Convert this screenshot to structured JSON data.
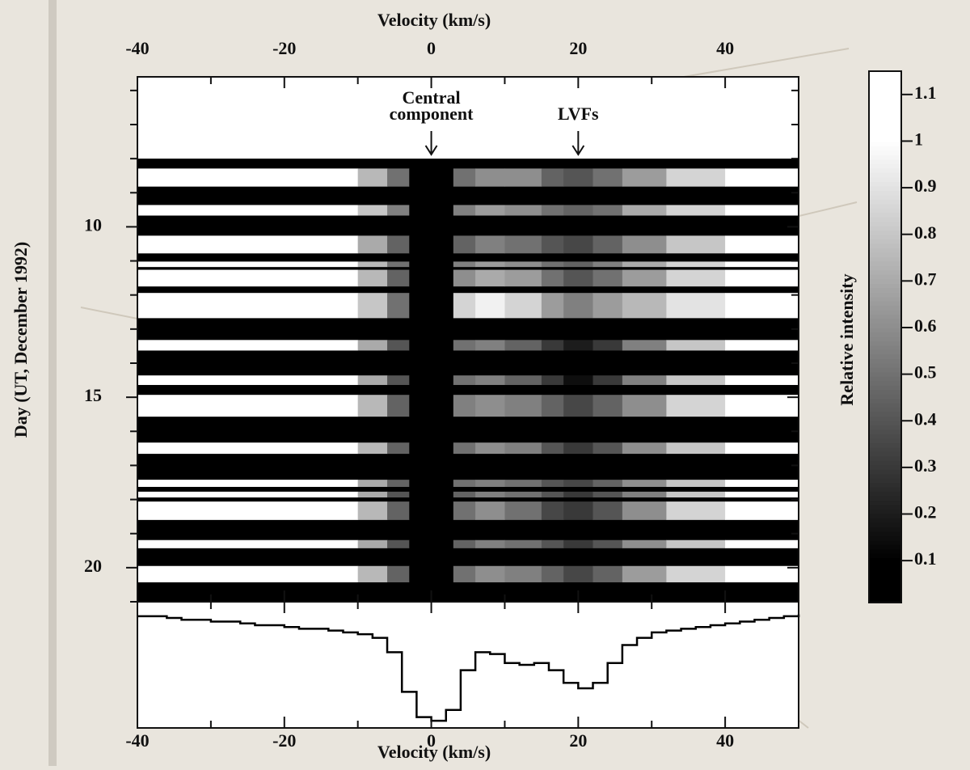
{
  "chart_data": {
    "type": "dynamic-spectrum",
    "xlabel_top": "Velocity (km/s)",
    "xlabel_bottom": "Velocity (km/s)",
    "ylabel": "Day (UT, December 1992)",
    "colorbar_label": "Relative intensity",
    "xlim": [
      -40,
      50
    ],
    "xticks": [
      -40,
      -20,
      0,
      20,
      40
    ],
    "xminorticks": [
      -30,
      -10,
      10,
      30
    ],
    "ylim": [
      5.6,
      21.0
    ],
    "yticks": [
      10,
      15,
      20
    ],
    "yminorticks": [
      6,
      7,
      8,
      9,
      11,
      12,
      13,
      14,
      16,
      17,
      18,
      19,
      21
    ],
    "observed_days": [
      8.0,
      21.0
    ],
    "clim": [
      0.1,
      1.0
    ],
    "cbar_lim": [
      0.01,
      1.15
    ],
    "cbar_ticks": [
      0.1,
      0.2,
      0.3,
      0.4,
      0.5,
      0.6,
      0.7,
      0.8,
      0.9,
      1,
      1.1
    ],
    "annotations": [
      {
        "lines": [
          "Central",
          "component"
        ],
        "x": 0
      },
      {
        "lines": [
          "LVFs"
        ],
        "x": 20
      }
    ],
    "vbins": [
      -40,
      -10,
      -6,
      -3,
      3,
      6,
      10,
      15,
      18,
      22,
      26,
      32,
      40,
      50
    ],
    "strips": [
      {
        "days": [
          8.29,
          8.82
        ],
        "values": [
          1.0,
          0.75,
          0.5,
          0.05,
          0.5,
          0.6,
          0.6,
          0.45,
          0.4,
          0.5,
          0.65,
          0.85,
          1.0
        ]
      },
      {
        "days": [
          9.36,
          9.67
        ],
        "values": [
          1.0,
          0.8,
          0.55,
          0.05,
          0.55,
          0.65,
          0.6,
          0.5,
          0.45,
          0.5,
          0.7,
          0.85,
          1.0
        ]
      },
      {
        "days": [
          10.26,
          10.78
        ],
        "values": [
          1.0,
          0.7,
          0.45,
          0.05,
          0.45,
          0.55,
          0.5,
          0.4,
          0.35,
          0.45,
          0.6,
          0.8,
          1.0
        ]
      },
      {
        "days": [
          11.02,
          11.18
        ],
        "values": [
          1.0,
          0.75,
          0.5,
          0.05,
          0.55,
          0.65,
          0.6,
          0.5,
          0.45,
          0.55,
          0.7,
          0.85,
          1.0
        ]
      },
      {
        "days": [
          11.26,
          11.75
        ],
        "values": [
          1.0,
          0.75,
          0.45,
          0.05,
          0.6,
          0.7,
          0.65,
          0.5,
          0.4,
          0.5,
          0.65,
          0.85,
          1.0
        ]
      },
      {
        "days": [
          11.94,
          12.68
        ],
        "values": [
          1.0,
          0.8,
          0.5,
          0.05,
          0.85,
          0.95,
          0.85,
          0.65,
          0.55,
          0.65,
          0.75,
          0.9,
          1.0
        ]
      },
      {
        "days": [
          13.32,
          13.63
        ],
        "values": [
          1.0,
          0.7,
          0.4,
          0.05,
          0.5,
          0.55,
          0.45,
          0.3,
          0.2,
          0.3,
          0.55,
          0.8,
          1.0
        ]
      },
      {
        "days": [
          14.36,
          14.64
        ],
        "values": [
          1.0,
          0.7,
          0.4,
          0.05,
          0.5,
          0.55,
          0.45,
          0.3,
          0.15,
          0.3,
          0.55,
          0.8,
          1.0
        ]
      },
      {
        "days": [
          14.93,
          15.57
        ],
        "values": [
          1.0,
          0.75,
          0.45,
          0.05,
          0.55,
          0.6,
          0.55,
          0.45,
          0.35,
          0.45,
          0.6,
          0.85,
          1.0
        ]
      },
      {
        "days": [
          16.33,
          16.66
        ],
        "values": [
          1.0,
          0.75,
          0.45,
          0.05,
          0.5,
          0.6,
          0.55,
          0.4,
          0.3,
          0.4,
          0.6,
          0.8,
          1.0
        ]
      },
      {
        "days": [
          17.42,
          17.63
        ],
        "values": [
          1.0,
          0.7,
          0.45,
          0.05,
          0.5,
          0.55,
          0.5,
          0.4,
          0.35,
          0.45,
          0.6,
          0.8,
          1.0
        ]
      },
      {
        "days": [
          17.77,
          17.94
        ],
        "values": [
          1.0,
          0.7,
          0.4,
          0.05,
          0.45,
          0.55,
          0.5,
          0.4,
          0.3,
          0.4,
          0.55,
          0.8,
          1.0
        ]
      },
      {
        "days": [
          18.06,
          18.6
        ],
        "values": [
          1.0,
          0.75,
          0.45,
          0.05,
          0.5,
          0.6,
          0.5,
          0.35,
          0.3,
          0.4,
          0.6,
          0.85,
          1.0
        ]
      },
      {
        "days": [
          19.19,
          19.43
        ],
        "values": [
          1.0,
          0.7,
          0.4,
          0.05,
          0.45,
          0.55,
          0.5,
          0.4,
          0.3,
          0.4,
          0.6,
          0.8,
          1.0
        ]
      },
      {
        "days": [
          19.95,
          20.43
        ],
        "values": [
          1.0,
          0.75,
          0.45,
          0.05,
          0.5,
          0.6,
          0.55,
          0.45,
          0.35,
          0.45,
          0.65,
          0.85,
          1.0
        ]
      }
    ],
    "profile": {
      "ylim": [
        0.3,
        1.0
      ],
      "x": [
        -40,
        -38,
        -36,
        -34,
        -32,
        -30,
        -28,
        -26,
        -24,
        -22,
        -20,
        -18,
        -16,
        -14,
        -12,
        -10,
        -8,
        -6,
        -4,
        -2,
        0,
        2,
        4,
        6,
        8,
        10,
        12,
        14,
        16,
        18,
        20,
        22,
        24,
        26,
        28,
        30,
        32,
        34,
        36,
        38,
        40,
        42,
        44,
        46,
        48,
        50
      ],
      "values": [
        0.92,
        0.92,
        0.91,
        0.9,
        0.9,
        0.89,
        0.89,
        0.88,
        0.87,
        0.87,
        0.86,
        0.85,
        0.85,
        0.84,
        0.83,
        0.82,
        0.8,
        0.72,
        0.5,
        0.36,
        0.34,
        0.4,
        0.62,
        0.72,
        0.71,
        0.66,
        0.65,
        0.66,
        0.62,
        0.55,
        0.52,
        0.55,
        0.66,
        0.76,
        0.8,
        0.83,
        0.84,
        0.85,
        0.86,
        0.87,
        0.88,
        0.89,
        0.9,
        0.91,
        0.92,
        0.93
      ]
    }
  }
}
